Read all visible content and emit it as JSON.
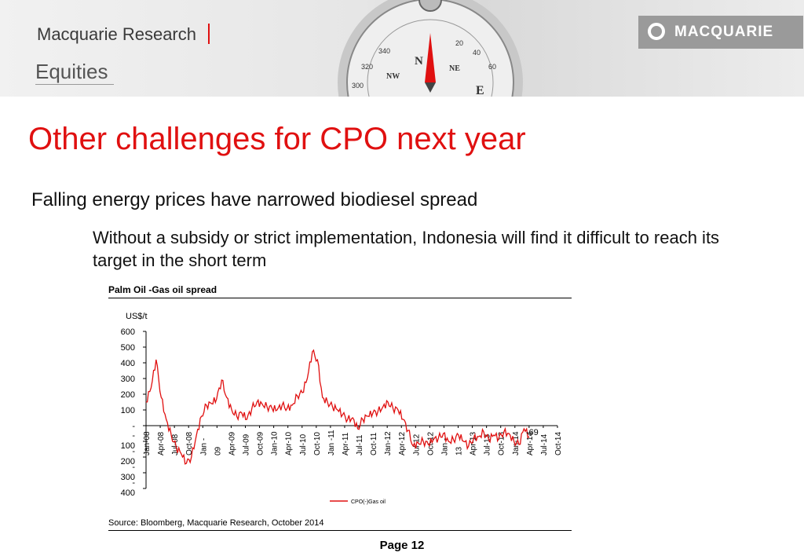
{
  "header": {
    "brand": "Macquarie Research",
    "section": "Equities",
    "logo_text": "MACQUARIE",
    "compass_letters": [
      "N",
      "NE",
      "NW",
      "E"
    ],
    "compass_numbers": [
      "340",
      "320",
      "300",
      "20",
      "40",
      "60"
    ]
  },
  "title": "Other challenges for CPO next year",
  "bullets": {
    "level1": {
      "marker": "",
      "text": "Falling energy prices have narrowed biodiesel spread"
    },
    "level2": {
      "marker": "",
      "text": "Without a subsidy or strict implementation, Indonesia will find it difficult to reach its target in the short term"
    }
  },
  "chart_data": {
    "type": "line",
    "title": "Palm Oil -Gas oil spread",
    "ylabel": "US$/t",
    "ylim": [
      -400,
      600
    ],
    "yticks": [
      600,
      500,
      400,
      300,
      200,
      100,
      0,
      -100,
      -200,
      -300,
      -400
    ],
    "ytick_labels": [
      "600",
      "500",
      "400",
      "300",
      "200",
      "100",
      "-",
      "-\n100",
      "-\n200",
      "-\n300",
      "-\n400"
    ],
    "x_tick_labels": [
      "Jan-08",
      "Apr-08",
      "Jul-08",
      "Oct-08",
      "Jan -",
      "09",
      "Apr-09",
      "Jul-09",
      "Oct-09",
      "Jan-10",
      "Apr-10",
      "Jul-10",
      "Oct-10",
      "Jan -11",
      "Apr-11",
      "Jul-11",
      "Oct-11",
      "Jan-12",
      "Apr-12",
      "Jul-12",
      "Oct-12",
      "Jan -",
      "13",
      "Apr-13",
      "Jul-13",
      "Oct-13",
      "Jan-14",
      "Apr-14",
      "Jul-14",
      "Oct-14"
    ],
    "series": [
      {
        "name": "CPO(-)Gas oil",
        "color": "#e01010",
        "x": [
          "2008-01",
          "2008-02",
          "2008-03",
          "2008-04",
          "2008-05",
          "2008-06",
          "2008-07",
          "2008-08",
          "2008-09",
          "2008-10",
          "2008-11",
          "2008-12",
          "2009-01",
          "2009-02",
          "2009-03",
          "2009-04",
          "2009-05",
          "2009-06",
          "2009-07",
          "2009-08",
          "2009-09",
          "2009-10",
          "2009-11",
          "2009-12",
          "2010-01",
          "2010-02",
          "2010-03",
          "2010-04",
          "2010-05",
          "2010-06",
          "2010-07",
          "2010-08",
          "2010-09",
          "2010-10",
          "2010-11",
          "2010-12",
          "2011-01",
          "2011-02",
          "2011-03",
          "2011-04",
          "2011-05",
          "2011-06",
          "2011-07",
          "2011-08",
          "2011-09",
          "2011-10",
          "2011-11",
          "2011-12",
          "2012-01",
          "2012-02",
          "2012-03",
          "2012-04",
          "2012-05",
          "2012-06",
          "2012-07",
          "2012-08",
          "2012-09",
          "2012-10",
          "2012-11",
          "2012-12",
          "2013-01",
          "2013-02",
          "2013-03",
          "2013-04",
          "2013-05",
          "2013-06",
          "2013-07",
          "2013-08",
          "2013-09",
          "2013-10",
          "2013-11",
          "2013-12",
          "2014-01",
          "2014-02",
          "2014-03",
          "2014-04",
          "2014-05"
        ],
        "values": [
          150,
          240,
          420,
          180,
          40,
          -60,
          -140,
          -180,
          -240,
          -200,
          -60,
          60,
          130,
          140,
          170,
          290,
          180,
          100,
          60,
          80,
          40,
          110,
          150,
          140,
          120,
          110,
          100,
          130,
          110,
          130,
          190,
          210,
          300,
          470,
          420,
          180,
          150,
          120,
          100,
          70,
          40,
          50,
          -20,
          40,
          60,
          80,
          90,
          120,
          150,
          110,
          100,
          40,
          -30,
          -130,
          -110,
          -100,
          -120,
          -90,
          -80,
          -50,
          -100,
          -90,
          -60,
          -100,
          -130,
          -80,
          -70,
          -40,
          -90,
          -60,
          -80,
          -40,
          -50,
          -100,
          -120,
          -20,
          -69
        ],
        "end_label": "-69"
      }
    ],
    "legend": {
      "position": "bottom-center"
    },
    "source": "Source: Bloomberg, Macquarie Research, October 2014"
  },
  "footer": {
    "page": "Page 12"
  }
}
